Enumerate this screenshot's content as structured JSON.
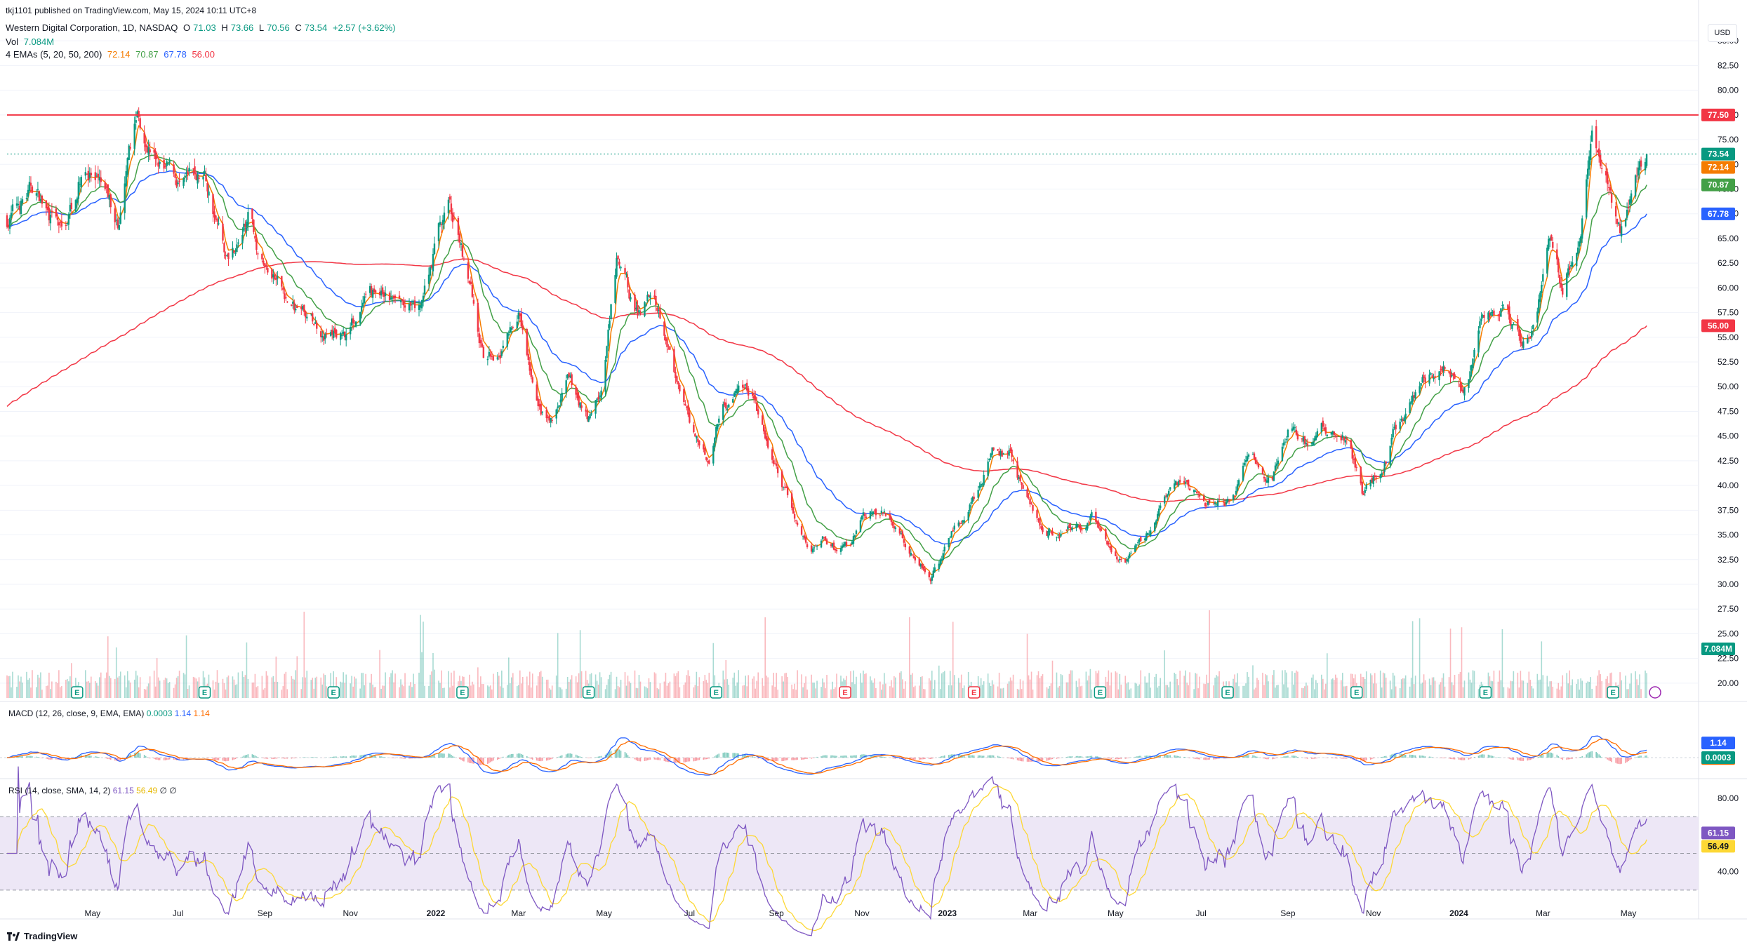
{
  "header": {
    "published": "tkj1101 published on TradingView.com, May 15, 2024 10:11 UTC+8",
    "symbol": "Western Digital Corporation, 1D, NASDAQ",
    "open_label": "O",
    "open": "71.03",
    "high_label": "H",
    "high": "73.66",
    "low_label": "L",
    "low": "70.56",
    "close_label": "C",
    "close": "73.54",
    "change": "+2.57 (+3.62%)",
    "vol_label": "Vol",
    "vol_value": "7.084M",
    "ema_label": "4 EMAs (5, 20, 50, 200)",
    "ema_values": [
      "72.14",
      "70.87",
      "67.78",
      "56.00"
    ]
  },
  "currency": "USD",
  "footer": {
    "brand": "TradingView"
  },
  "colors": {
    "up": "#089981",
    "down": "#f23645",
    "ema5": "#f57c00",
    "ema20": "#43a047",
    "ema50": "#2962ff",
    "ema200": "#f23645",
    "macd": "#2962ff",
    "signal": "#ff6d00",
    "rsi": "#7e57c2",
    "rsi_ma": "#fdd835",
    "resistance": "#f23645",
    "rsi_band": "#ede7f6"
  },
  "chart_data": {
    "type": "candlestick",
    "price_axis_ticks": [
      "85.00",
      "82.50",
      "80.00",
      "77.50",
      "75.00",
      "72.50",
      "70.00",
      "67.50",
      "65.00",
      "62.50",
      "60.00",
      "57.50",
      "55.00",
      "52.50",
      "50.00",
      "47.50",
      "45.00",
      "42.50",
      "40.00",
      "37.50",
      "35.00",
      "32.50",
      "30.00",
      "27.50",
      "25.00",
      "22.50",
      "20.00"
    ],
    "price_range": [
      18.5,
      87
    ],
    "x_labels": [
      "May",
      "Jul",
      "Sep",
      "Nov",
      "2022",
      "Mar",
      "May",
      "Jul",
      "Sep",
      "Nov",
      "2023",
      "Mar",
      "May",
      "Jul",
      "Sep",
      "Nov",
      "2024",
      "Mar",
      "May"
    ],
    "resistance_level": 77.5,
    "resistance_label": "77.50",
    "last_price_label": "73.54",
    "ema_labels": [
      "72.14",
      "70.87",
      "67.78",
      "56.00"
    ],
    "volume_label": "7.084M",
    "earnings_markers": [
      {
        "month": "Apr 2021",
        "kind": "E"
      },
      {
        "month": "Jul 2021",
        "kind": "E"
      },
      {
        "month": "Oct 2021",
        "kind": "E"
      },
      {
        "month": "Jan 2022",
        "kind": "E"
      },
      {
        "month": "Apr 2022",
        "kind": "E"
      },
      {
        "month": "Jul 2022",
        "kind": "E"
      },
      {
        "month": "Oct 2022",
        "kind": "E-neg"
      },
      {
        "month": "Jan 2023",
        "kind": "E-neg"
      },
      {
        "month": "Apr 2023",
        "kind": "E"
      },
      {
        "month": "Jul 2023",
        "kind": "E"
      },
      {
        "month": "Oct 2023",
        "kind": "E"
      },
      {
        "month": "Jan 2024",
        "kind": "E"
      },
      {
        "month": "Apr 2024",
        "kind": "E"
      },
      {
        "month": "May 2024",
        "kind": "split"
      }
    ],
    "price_anchors": [
      [
        "2021-03-01",
        67
      ],
      [
        "2021-03-20",
        70
      ],
      [
        "2021-04-10",
        65
      ],
      [
        "2021-04-25",
        73
      ],
      [
        "2021-05-05",
        70
      ],
      [
        "2021-05-20",
        66
      ],
      [
        "2021-06-02",
        77
      ],
      [
        "2021-06-10",
        75
      ],
      [
        "2021-06-20",
        72
      ],
      [
        "2021-07-05",
        70
      ],
      [
        "2021-07-20",
        71
      ],
      [
        "2021-08-05",
        63
      ],
      [
        "2021-08-20",
        67
      ],
      [
        "2021-09-01",
        62
      ],
      [
        "2021-09-20",
        58
      ],
      [
        "2021-10-10",
        56
      ],
      [
        "2021-10-25",
        55
      ],
      [
        "2021-11-05",
        57
      ],
      [
        "2021-11-20",
        59
      ],
      [
        "2021-12-05",
        58
      ],
      [
        "2021-12-20",
        57
      ],
      [
        "2022-01-03",
        66
      ],
      [
        "2022-01-10",
        68
      ],
      [
        "2022-01-25",
        61
      ],
      [
        "2022-02-05",
        52
      ],
      [
        "2022-02-20",
        55
      ],
      [
        "2022-03-01",
        57
      ],
      [
        "2022-03-15",
        47
      ],
      [
        "2022-03-25",
        46
      ],
      [
        "2022-04-05",
        50
      ],
      [
        "2022-04-20",
        47
      ],
      [
        "2022-04-30",
        50
      ],
      [
        "2022-05-10",
        62
      ],
      [
        "2022-05-25",
        57
      ],
      [
        "2022-06-05",
        61
      ],
      [
        "2022-06-15",
        56
      ],
      [
        "2022-06-25",
        48
      ],
      [
        "2022-07-05",
        45
      ],
      [
        "2022-07-15",
        43
      ],
      [
        "2022-07-25",
        48
      ],
      [
        "2022-08-05",
        50
      ],
      [
        "2022-08-15",
        49
      ],
      [
        "2022-08-25",
        44
      ],
      [
        "2022-09-10",
        38
      ],
      [
        "2022-09-25",
        33
      ],
      [
        "2022-10-05",
        35
      ],
      [
        "2022-10-15",
        33
      ],
      [
        "2022-10-25",
        34
      ],
      [
        "2022-11-05",
        37
      ],
      [
        "2022-11-20",
        37
      ],
      [
        "2022-12-05",
        34
      ],
      [
        "2022-12-20",
        31
      ],
      [
        "2023-01-05",
        35
      ],
      [
        "2023-01-20",
        39
      ],
      [
        "2023-02-05",
        44
      ],
      [
        "2023-02-15",
        43
      ],
      [
        "2023-02-25",
        39
      ],
      [
        "2023-03-10",
        36
      ],
      [
        "2023-03-25",
        35
      ],
      [
        "2023-04-05",
        36
      ],
      [
        "2023-04-15",
        37
      ],
      [
        "2023-04-28",
        33
      ],
      [
        "2023-05-10",
        32
      ],
      [
        "2023-05-20",
        34
      ],
      [
        "2023-06-05",
        38
      ],
      [
        "2023-06-20",
        40
      ],
      [
        "2023-07-05",
        38
      ],
      [
        "2023-07-20",
        38
      ],
      [
        "2023-08-05",
        43
      ],
      [
        "2023-08-20",
        40
      ],
      [
        "2023-09-01",
        45
      ],
      [
        "2023-09-15",
        44
      ],
      [
        "2023-10-01",
        46
      ],
      [
        "2023-10-15",
        45
      ],
      [
        "2023-10-25",
        39
      ],
      [
        "2023-11-05",
        41
      ],
      [
        "2023-11-20",
        47
      ],
      [
        "2023-12-05",
        50
      ],
      [
        "2023-12-20",
        52
      ],
      [
        "2024-01-05",
        50
      ],
      [
        "2024-01-20",
        57
      ],
      [
        "2024-02-01",
        58
      ],
      [
        "2024-02-15",
        55
      ],
      [
        "2024-02-25",
        57
      ],
      [
        "2024-03-05",
        64
      ],
      [
        "2024-03-15",
        60
      ],
      [
        "2024-03-28",
        66
      ],
      [
        "2024-04-05",
        75
      ],
      [
        "2024-04-15",
        72
      ],
      [
        "2024-04-25",
        67
      ],
      [
        "2024-05-05",
        71
      ],
      [
        "2024-05-14",
        73.54
      ]
    ]
  },
  "macd": {
    "label": "MACD (12, 26, close, 9, EMA, EMA)",
    "values": [
      "0.0003",
      "1.14",
      "1.14"
    ],
    "axis_labels": [
      "1.14",
      "1.14",
      "0.0003"
    ]
  },
  "rsi": {
    "label": "RSI (14, close, SMA, 14, 2)",
    "values": [
      "61.15",
      "56.49",
      "∅",
      "∅"
    ],
    "axis_ticks": [
      "80.00",
      "40.00"
    ],
    "axis_labels": [
      "61.15",
      "56.49"
    ],
    "range": [
      20,
      85
    ]
  }
}
